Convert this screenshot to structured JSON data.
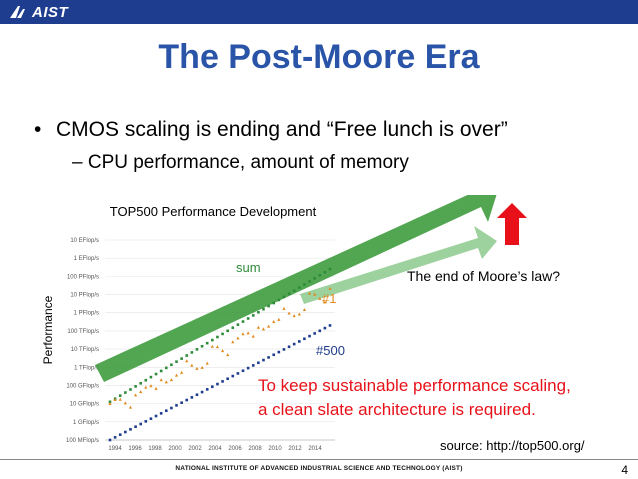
{
  "header": {
    "logo_text": "AIST",
    "bar_color": "#1f3d8f"
  },
  "slide": {
    "title": "The Post-Moore Era",
    "bullet": "CMOS scaling is ending and “Free lunch is over”",
    "sub_bullet": "– CPU performance, amount of memory",
    "moore_label": "The end of Moore’s law?",
    "red_line_1": "To keep sustainable performance scaling,",
    "red_line_2": "a clean slate architecture is required.",
    "source": "source: http://top500.org/",
    "footer": "NATIONAL INSTITUTE OF ADVANCED INDUSTRIAL SCIENCE AND TECHNOLOGY (AIST)",
    "page_number": "4"
  },
  "chart_data": {
    "type": "scatter",
    "title": "TOP500 Performance Development",
    "ylabel": "Performance",
    "xlabel": "",
    "log_scale_y": true,
    "y_tick_labels": [
      "100 MFlop/s",
      "1 GFlop/s",
      "10 GFlop/s",
      "100 GFlop/s",
      "1 TFlop/s",
      "10 TFlop/s",
      "100 TFlop/s",
      "1 PFlop/s",
      "10 PFlop/s",
      "100 PFlop/s",
      "1 EFlop/s",
      "10 EFlop/s"
    ],
    "x_tick_labels": [
      "1994",
      "1996",
      "1998",
      "2000",
      "2002",
      "2004",
      "2006",
      "2008",
      "2010",
      "2012",
      "2014"
    ],
    "x_range": [
      1993,
      2016
    ],
    "y_range_log10_flops": [
      8,
      19
    ],
    "series": [
      {
        "name": "sum",
        "color": "#2e8b3a",
        "marker": "square",
        "start_year": 1993.5,
        "start_log": 10.1,
        "end_year": 2015.5,
        "end_log": 17.4
      },
      {
        "name": "#1",
        "color": "#e08a1e",
        "marker": "triangle",
        "start_year": 1993.5,
        "start_log": 10.0,
        "end_year": 2015.5,
        "end_log": 16.55
      },
      {
        "name": "#500",
        "color": "#1f3d8f",
        "marker": "square",
        "start_year": 1993.5,
        "start_log": 8.0,
        "end_year": 2015.5,
        "end_log": 14.3
      }
    ],
    "annotations": {
      "sum_color": "#2e8b3a",
      "n1_color": "#e08a1e",
      "n500_color": "#1f3d8f",
      "arrow_green": "#3a9a3a",
      "arrow_red": "#e8111a"
    }
  }
}
